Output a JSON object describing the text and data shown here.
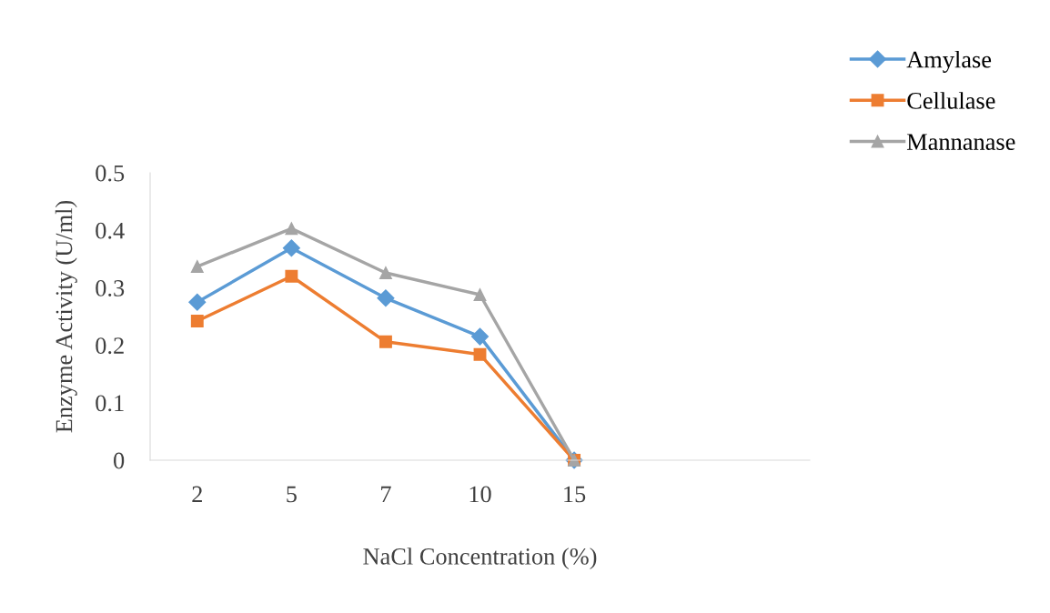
{
  "chart_data": {
    "type": "line",
    "xlabel": "NaCl Concentration (%)",
    "ylabel": "Enzyme Activity (U/ml)",
    "categories": [
      "2",
      "5",
      "7",
      "10",
      "15",
      null,
      null
    ],
    "series": [
      {
        "name": "Amylase",
        "color": "#5b9bd5",
        "marker": "diamond",
        "values": [
          0.275,
          0.369,
          0.282,
          0.215,
          0,
          null,
          null
        ]
      },
      {
        "name": "Cellulase",
        "color": "#ed7d31",
        "marker": "square",
        "values": [
          0.242,
          0.32,
          0.206,
          0.184,
          0,
          null,
          null
        ]
      },
      {
        "name": "Mannanase",
        "color": "#a5a5a5",
        "marker": "triangle",
        "values": [
          0.337,
          0.403,
          0.326,
          0.288,
          0,
          null,
          null
        ]
      }
    ],
    "ylim": [
      0,
      0.5
    ],
    "yticks": [
      0,
      0.1,
      0.2,
      0.3,
      0.4,
      0.5
    ],
    "grid": false,
    "legend": "top right",
    "line_style": "solid"
  }
}
